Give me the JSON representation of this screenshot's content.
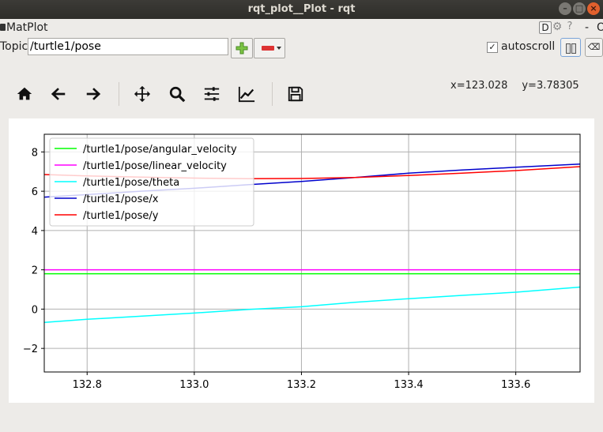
{
  "window": {
    "title": "rqt_plot__Plot - rqt",
    "buttons": [
      "minimize",
      "maximize",
      "close"
    ]
  },
  "plugin": {
    "name": "MatPlot",
    "right_icons": {
      "d": "D",
      "dash": "-",
      "o": "O"
    }
  },
  "topic": {
    "label": "Topic",
    "value": "/turtle1/pose",
    "add_icon": "plus-icon",
    "remove_icon": "minus-icon"
  },
  "autoscroll": {
    "label": "autoscroll",
    "checked": true,
    "check_glyph": "✓"
  },
  "toolbar": {
    "icons": [
      "home-icon",
      "back-arrow-icon",
      "forward-arrow-icon",
      "pan-icon",
      "zoom-icon",
      "configure-subplots-icon",
      "edit-axes-icon",
      "save-icon"
    ]
  },
  "cursor": {
    "x_text": "x=123.028",
    "y_text": "y=3.78305"
  },
  "chart_data": {
    "type": "line",
    "title": "",
    "xlabel": "",
    "ylabel": "",
    "xlim": [
      132.72,
      133.72
    ],
    "ylim": [
      -3.2,
      8.9
    ],
    "xticks": [
      132.8,
      133.0,
      133.2,
      133.4,
      133.6
    ],
    "xtick_labels": [
      "132.8",
      "133.0",
      "133.2",
      "133.4",
      "133.6"
    ],
    "yticks": [
      -2,
      0,
      2,
      4,
      6,
      8
    ],
    "ytick_labels": [
      "−2",
      "0",
      "2",
      "4",
      "6",
      "8"
    ],
    "grid": true,
    "legend_position": "top-left",
    "series": [
      {
        "name": "/turtle1/pose/angular_velocity",
        "color": "#00ff00",
        "x": [
          132.72,
          133.72
        ],
        "y": [
          1.8,
          1.8
        ]
      },
      {
        "name": "/turtle1/pose/linear_velocity",
        "color": "#ff00ff",
        "x": [
          132.72,
          133.72
        ],
        "y": [
          2.0,
          2.0
        ]
      },
      {
        "name": "/turtle1/pose/theta",
        "color": "#00ffff",
        "x": [
          132.72,
          132.8,
          132.9,
          133.0,
          133.1,
          133.2,
          133.3,
          133.4,
          133.5,
          133.6,
          133.72
        ],
        "y": [
          -0.68,
          -0.52,
          -0.36,
          -0.2,
          -0.02,
          0.12,
          0.35,
          0.53,
          0.7,
          0.86,
          1.12
        ]
      },
      {
        "name": "/turtle1/pose/x",
        "color": "#0000cc",
        "x": [
          132.72,
          132.8,
          132.9,
          133.0,
          133.1,
          133.2,
          133.3,
          133.4,
          133.5,
          133.6,
          133.72
        ],
        "y": [
          5.7,
          5.83,
          6.0,
          6.15,
          6.33,
          6.5,
          6.7,
          6.92,
          7.08,
          7.22,
          7.38
        ]
      },
      {
        "name": "/turtle1/pose/y",
        "color": "#ff0000",
        "x": [
          132.72,
          132.8,
          132.9,
          133.0,
          133.1,
          133.2,
          133.3,
          133.4,
          133.5,
          133.6,
          133.72
        ],
        "y": [
          6.85,
          6.78,
          6.72,
          6.67,
          6.64,
          6.65,
          6.7,
          6.8,
          6.92,
          7.05,
          7.25
        ]
      }
    ]
  }
}
